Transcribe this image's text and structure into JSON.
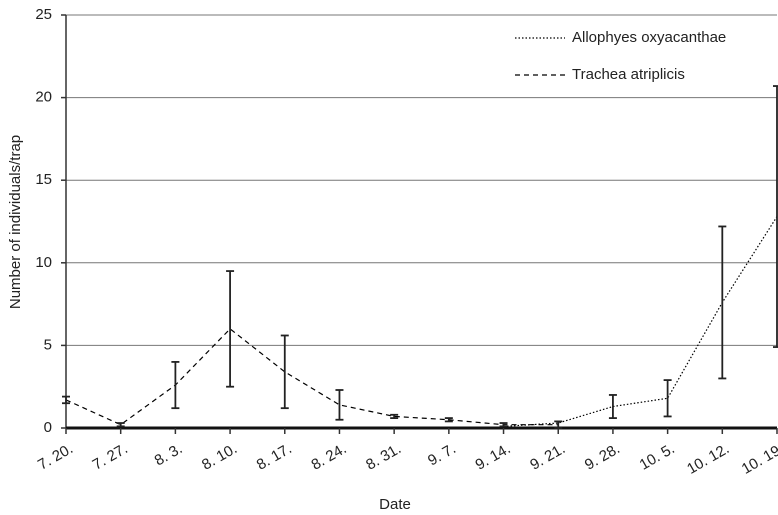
{
  "chart_data": {
    "type": "line",
    "x_label": "Date",
    "y_label": "Number of individuals/trap",
    "categories": [
      "7. 20.",
      "7. 27.",
      "8. 3.",
      "8. 10.",
      "8. 17.",
      "8. 24.",
      "8. 31.",
      "9. 7.",
      "9. 14.",
      "9. 21.",
      "9. 28.",
      "10. 5.",
      "10. 12.",
      "10. 19."
    ],
    "series": [
      {
        "name": "Allophyes oxyacanthae",
        "color": "#000000",
        "line_style": "dotted",
        "values": [
          null,
          null,
          null,
          null,
          null,
          null,
          null,
          null,
          0.1,
          0.3,
          1.3,
          1.8,
          7.6,
          12.8
        ],
        "errors": [
          null,
          null,
          null,
          null,
          null,
          null,
          null,
          null,
          null,
          null,
          0.7,
          1.1,
          4.6,
          7.9
        ]
      },
      {
        "name": "Trachea atriplicis",
        "color": "#000000",
        "line_style": "dashed",
        "values": [
          1.7,
          0.2,
          2.6,
          6.0,
          3.4,
          1.4,
          0.7,
          0.5,
          0.2,
          0.2,
          null,
          null,
          null,
          null
        ],
        "errors": [
          0.2,
          0.1,
          1.4,
          3.5,
          2.2,
          0.9,
          0.1,
          0.1,
          0.1,
          0.2,
          null,
          null,
          null,
          null
        ]
      }
    ],
    "ylim": [
      0,
      25
    ],
    "yticks": [
      0,
      5,
      10,
      15,
      20,
      25
    ],
    "grid": true,
    "legend": "top-right"
  }
}
